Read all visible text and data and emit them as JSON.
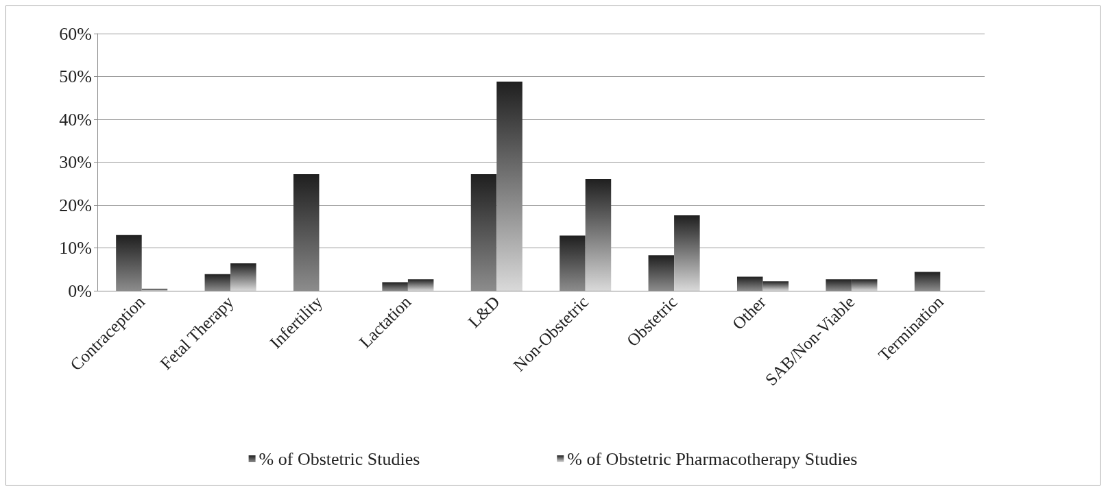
{
  "chart_data": {
    "type": "bar",
    "categories": [
      "Contraception",
      "Fetal Therapy",
      "Infertility",
      "Lactation",
      "L&D",
      "Non-Obstetric",
      "Obstetric",
      "Other",
      "SAB/Non-Viable",
      "Termination"
    ],
    "series": [
      {
        "name": "% of Obstetric Studies",
        "color": "#8c8c8c",
        "values": [
          13.0,
          3.9,
          27.2,
          2.0,
          27.2,
          12.9,
          8.3,
          3.3,
          2.7,
          4.4
        ]
      },
      {
        "name": "% of Obstetric Pharmacotherapy Studies",
        "color": "#d9d9d9",
        "values": [
          0.5,
          6.4,
          0,
          2.7,
          48.8,
          26.1,
          17.6,
          2.2,
          2.7,
          0
        ]
      }
    ],
    "ylim": [
      0,
      60
    ],
    "yticks": [
      {
        "value": 0,
        "label": "0%"
      },
      {
        "value": 10,
        "label": "10%"
      },
      {
        "value": 20,
        "label": "20%"
      },
      {
        "value": 30,
        "label": "30%"
      },
      {
        "value": 40,
        "label": "40%"
      },
      {
        "value": 50,
        "label": "50%"
      },
      {
        "value": 60,
        "label": "60%"
      }
    ],
    "grid": "y",
    "legend": "bottom"
  }
}
